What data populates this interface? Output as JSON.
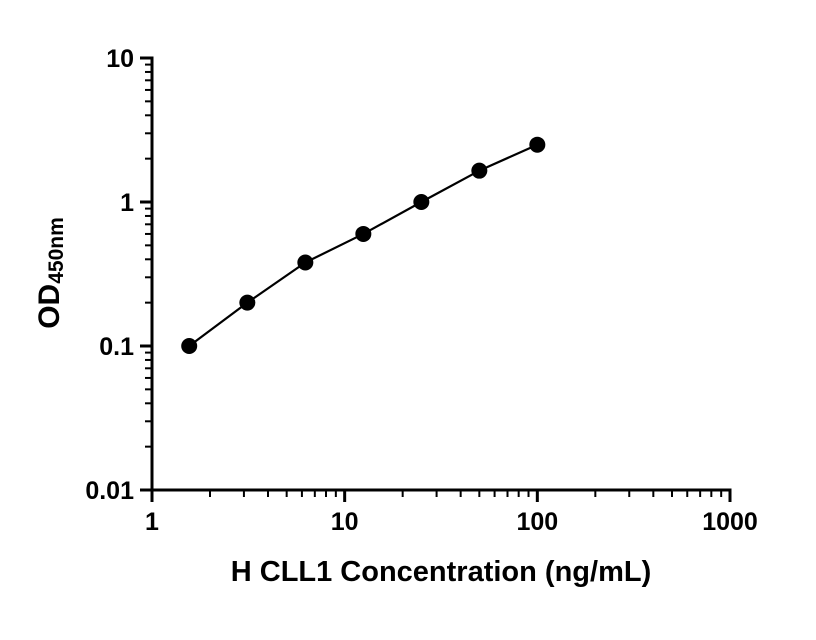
{
  "chart_data": {
    "type": "scatter",
    "style": "line-with-markers",
    "x": [
      1.56,
      3.125,
      6.25,
      12.5,
      25,
      50,
      100
    ],
    "y": [
      0.1,
      0.2,
      0.38,
      0.6,
      1.0,
      1.65,
      2.5
    ],
    "xlabel": "H CLL1 Concentration (ng/mL)",
    "ylabel_main": "OD",
    "ylabel_sub": "450nm",
    "xscale": "log",
    "yscale": "log",
    "xlim": [
      1,
      1000
    ],
    "ylim": [
      0.01,
      10
    ],
    "x_ticks": [
      1,
      10,
      100,
      1000
    ],
    "x_tick_labels": [
      "1",
      "10",
      "100",
      "1000"
    ],
    "y_ticks": [
      0.01,
      0.1,
      1,
      10
    ],
    "y_tick_labels": [
      "0.01",
      "0.1",
      "1",
      "10"
    ],
    "grid": "off",
    "legend": "none",
    "marker_color": "#000000",
    "line_color": "#000000",
    "axis_color": "#000000",
    "background": "#ffffff"
  }
}
